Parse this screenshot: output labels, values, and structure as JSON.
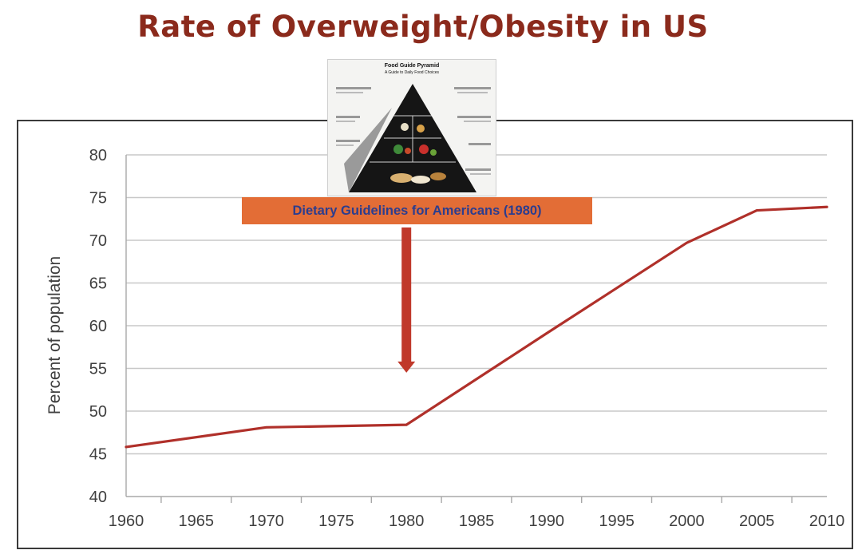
{
  "chart_data": {
    "type": "line",
    "title": "Rate of Overweight/Obesity in US",
    "xlabel": "",
    "ylabel": "Percent of population",
    "x": [
      1960,
      1970,
      1980,
      1990,
      2000,
      2005,
      2010
    ],
    "series": [
      {
        "values": [
          45.8,
          48.1,
          48.4,
          59.1,
          69.7,
          73.5,
          73.9
        ]
      }
    ],
    "x_ticks": [
      "1960",
      "1965",
      "1970",
      "1975",
      "1980",
      "1985",
      "1990",
      "1995",
      "2000",
      "2005",
      "2010"
    ],
    "y_ticks": [
      "40",
      "45",
      "50",
      "55",
      "60",
      "65",
      "70",
      "75",
      "80"
    ],
    "xlim": [
      1960,
      2010
    ],
    "ylim": [
      40,
      80
    ],
    "grid": "horizontal",
    "annotation": {
      "text": "Dietary Guidelines for Americans (1980)",
      "x": 1980,
      "y_from": 71.5,
      "y_to": 54.5
    },
    "inset_image": {
      "title": "Food Guide Pyramid",
      "subtitle": "A Guide to Daily Food Choices"
    },
    "colors": {
      "title": "#8b2a1c",
      "line": "#b0302a",
      "arrow": "#c0392b",
      "annotation_box": "#e36d36",
      "annotation_text": "#2b3d8f"
    }
  }
}
